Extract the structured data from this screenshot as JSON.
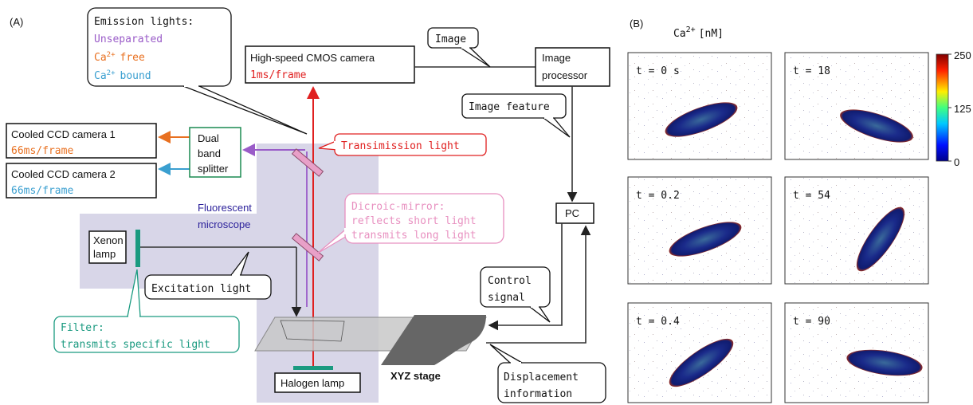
{
  "label_a": "(A)",
  "label_b": "(B)",
  "emission": {
    "title": "Emission lights:",
    "unseparated": "Unseparated",
    "free": {
      "base": "Ca",
      "sup": "2+",
      "rest": "free"
    },
    "bound": {
      "base": "Ca",
      "sup": "2+",
      "rest": "bound"
    }
  },
  "cmos": {
    "name": "High-speed CMOS camera",
    "rate": "1ms/frame"
  },
  "image_callout": "Image",
  "image_processor": [
    "Image",
    "processor"
  ],
  "image_feature": "Image feature",
  "pc": "PC",
  "ccd1": {
    "name": "Cooled CCD camera 1",
    "rate": "66ms/frame"
  },
  "ccd2": {
    "name": "Cooled CCD camera 2",
    "rate": "66ms/frame"
  },
  "splitter": [
    "Dual",
    "band",
    "splitter"
  ],
  "transmission": "Transimission light",
  "dichroic": [
    "Dicroic-mirror:",
    "reflects short light",
    "transmits long light"
  ],
  "microscope": [
    "Fluorescent",
    "microscope"
  ],
  "xenon": [
    "Xenon",
    "lamp"
  ],
  "excitation": "Excitation light",
  "filter": [
    "Filter:",
    "transmits specific light"
  ],
  "control": [
    "Control",
    "signal"
  ],
  "halogen": "Halogen lamp",
  "stage": "XYZ stage",
  "displacement": [
    "Displacement",
    "information"
  ],
  "panel_b": {
    "title": {
      "base": "Ca",
      "sup": "2+",
      "rest": "[nM]"
    },
    "frames": [
      "t = 0 s",
      "t = 18",
      "t = 0.2",
      "t = 54",
      "t = 0.4",
      "t = 90"
    ],
    "colorbar": {
      "range": [
        0,
        250
      ],
      "ticks": [
        250,
        125,
        0
      ]
    }
  }
}
